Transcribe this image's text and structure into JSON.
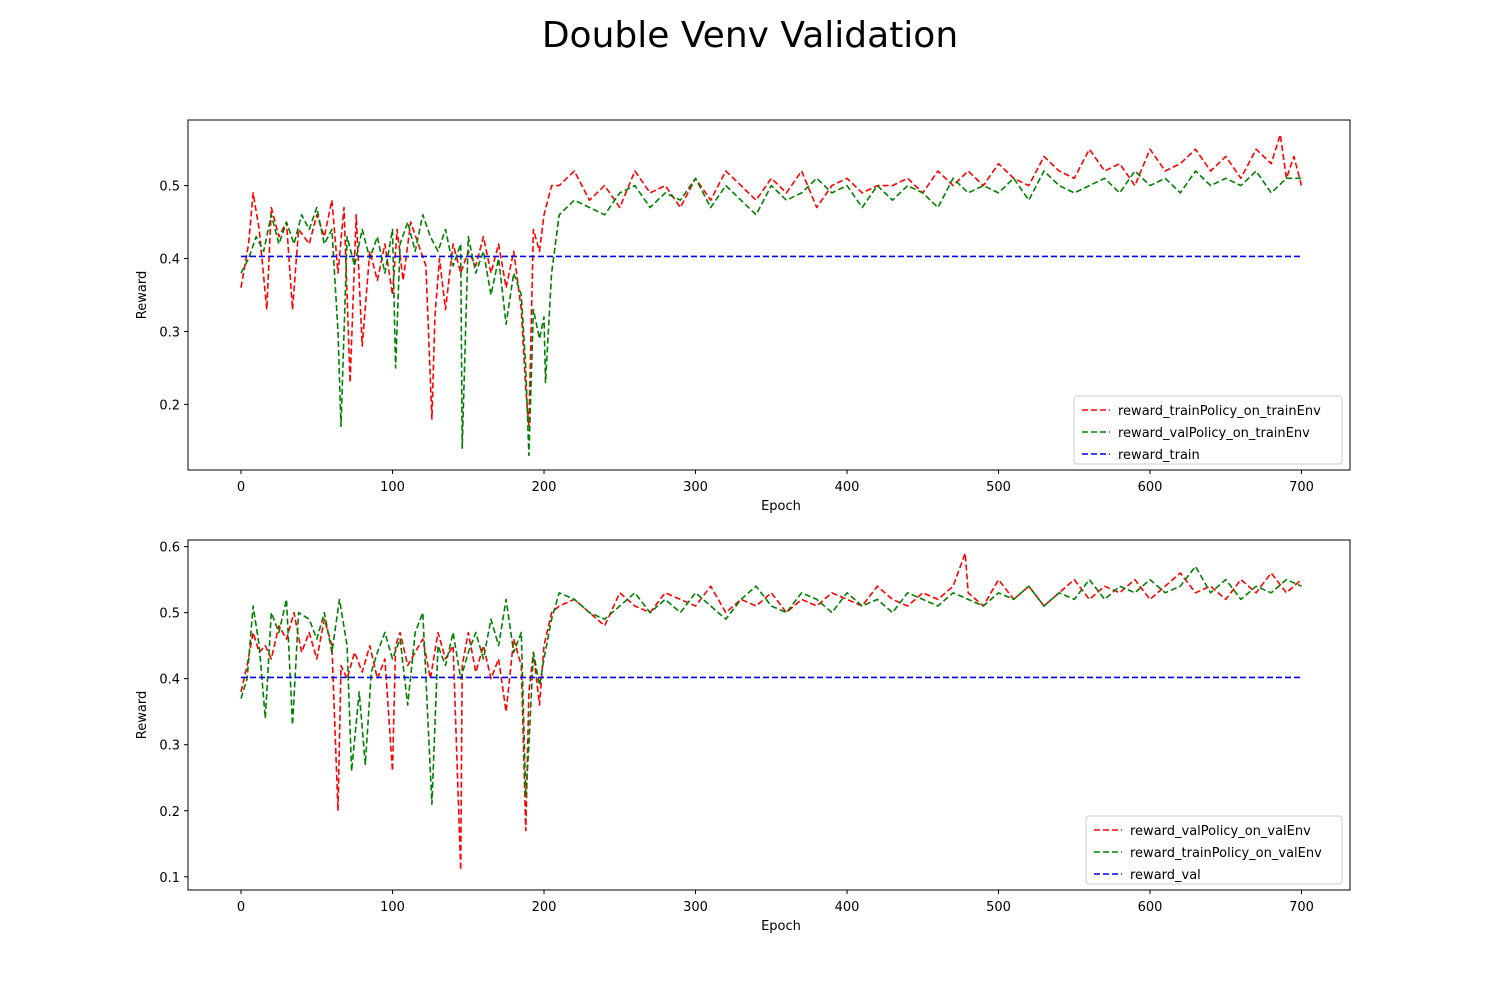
{
  "figure": {
    "suptitle": "Double Venv Validation"
  },
  "chart_data": [
    {
      "type": "line",
      "xlabel": "Epoch",
      "ylabel": "Reward",
      "xlim": [
        -35,
        732
      ],
      "ylim": [
        0.11,
        0.59
      ],
      "xticks": [
        0,
        100,
        200,
        300,
        400,
        500,
        600,
        700
      ],
      "yticks": [
        0.2,
        0.3,
        0.4,
        0.5
      ],
      "legend_position": "lower-right",
      "series": [
        {
          "name": "reward_trainPolicy_on_trainEnv",
          "color": "#ff0000",
          "style": "dashed",
          "x": [
            0,
            5,
            8,
            12,
            17,
            20,
            25,
            30,
            34,
            38,
            45,
            50,
            55,
            60,
            64,
            68,
            72,
            76,
            80,
            85,
            90,
            95,
            100,
            103,
            107,
            112,
            117,
            122,
            126,
            128,
            131,
            135,
            140,
            145,
            150,
            155,
            160,
            165,
            170,
            175,
            180,
            185,
            188,
            190,
            193,
            197,
            200,
            205,
            210,
            220,
            230,
            240,
            250,
            260,
            270,
            280,
            290,
            300,
            310,
            320,
            330,
            340,
            350,
            360,
            370,
            380,
            390,
            400,
            410,
            420,
            430,
            440,
            450,
            460,
            470,
            480,
            490,
            500,
            510,
            520,
            530,
            540,
            550,
            560,
            570,
            580,
            590,
            600,
            610,
            620,
            630,
            640,
            650,
            660,
            670,
            680,
            686,
            690,
            695,
            700
          ],
          "y": [
            0.36,
            0.42,
            0.49,
            0.44,
            0.33,
            0.47,
            0.43,
            0.45,
            0.33,
            0.44,
            0.42,
            0.46,
            0.43,
            0.48,
            0.38,
            0.47,
            0.23,
            0.46,
            0.28,
            0.41,
            0.37,
            0.42,
            0.35,
            0.44,
            0.37,
            0.45,
            0.42,
            0.39,
            0.18,
            0.32,
            0.4,
            0.33,
            0.42,
            0.38,
            0.41,
            0.39,
            0.43,
            0.38,
            0.42,
            0.36,
            0.41,
            0.33,
            0.22,
            0.17,
            0.44,
            0.41,
            0.46,
            0.5,
            0.5,
            0.52,
            0.48,
            0.5,
            0.47,
            0.52,
            0.49,
            0.5,
            0.47,
            0.51,
            0.48,
            0.52,
            0.5,
            0.48,
            0.51,
            0.49,
            0.52,
            0.47,
            0.5,
            0.51,
            0.49,
            0.5,
            0.5,
            0.51,
            0.49,
            0.52,
            0.5,
            0.52,
            0.5,
            0.53,
            0.51,
            0.5,
            0.54,
            0.52,
            0.51,
            0.55,
            0.52,
            0.53,
            0.5,
            0.55,
            0.52,
            0.53,
            0.55,
            0.52,
            0.54,
            0.51,
            0.55,
            0.53,
            0.57,
            0.51,
            0.54,
            0.5
          ]
        },
        {
          "name": "reward_valPolicy_on_trainEnv",
          "color": "#008000",
          "style": "dashed",
          "x": [
            0,
            5,
            10,
            15,
            20,
            25,
            30,
            35,
            40,
            45,
            50,
            55,
            60,
            64,
            66,
            70,
            75,
            80,
            85,
            90,
            95,
            100,
            102,
            105,
            110,
            115,
            120,
            125,
            130,
            135,
            140,
            145,
            146,
            150,
            155,
            160,
            165,
            170,
            175,
            180,
            185,
            188,
            190,
            193,
            197,
            200,
            201,
            205,
            210,
            220,
            230,
            240,
            250,
            260,
            270,
            280,
            290,
            300,
            310,
            320,
            330,
            340,
            350,
            360,
            370,
            380,
            390,
            400,
            410,
            420,
            430,
            440,
            450,
            460,
            470,
            480,
            490,
            500,
            510,
            520,
            530,
            540,
            550,
            560,
            570,
            580,
            590,
            600,
            610,
            620,
            630,
            640,
            650,
            660,
            670,
            680,
            690,
            700
          ],
          "y": [
            0.38,
            0.4,
            0.43,
            0.41,
            0.46,
            0.42,
            0.45,
            0.42,
            0.46,
            0.44,
            0.47,
            0.42,
            0.44,
            0.3,
            0.17,
            0.43,
            0.39,
            0.44,
            0.4,
            0.43,
            0.38,
            0.44,
            0.25,
            0.42,
            0.45,
            0.41,
            0.46,
            0.43,
            0.41,
            0.44,
            0.39,
            0.42,
            0.14,
            0.43,
            0.38,
            0.41,
            0.35,
            0.4,
            0.31,
            0.38,
            0.35,
            0.25,
            0.13,
            0.33,
            0.29,
            0.32,
            0.23,
            0.38,
            0.46,
            0.48,
            0.47,
            0.46,
            0.49,
            0.5,
            0.47,
            0.49,
            0.48,
            0.51,
            0.47,
            0.5,
            0.48,
            0.46,
            0.5,
            0.48,
            0.49,
            0.51,
            0.49,
            0.5,
            0.47,
            0.5,
            0.48,
            0.5,
            0.49,
            0.47,
            0.51,
            0.49,
            0.5,
            0.49,
            0.51,
            0.48,
            0.52,
            0.5,
            0.49,
            0.5,
            0.51,
            0.49,
            0.52,
            0.5,
            0.51,
            0.49,
            0.52,
            0.5,
            0.51,
            0.5,
            0.52,
            0.49,
            0.51,
            0.51
          ]
        },
        {
          "name": "reward_train",
          "color": "#0000ff",
          "style": "dashed",
          "x": [
            0,
            700
          ],
          "y": [
            0.403,
            0.403
          ]
        }
      ]
    },
    {
      "type": "line",
      "xlabel": "Epoch",
      "ylabel": "Reward",
      "xlim": [
        -35,
        732
      ],
      "ylim": [
        0.08,
        0.61
      ],
      "xticks": [
        0,
        100,
        200,
        300,
        400,
        500,
        600,
        700
      ],
      "yticks": [
        0.1,
        0.2,
        0.3,
        0.4,
        0.5,
        0.6
      ],
      "legend_position": "lower-right",
      "series": [
        {
          "name": "reward_valPolicy_on_valEnv",
          "color": "#ff0000",
          "style": "dashed",
          "x": [
            0,
            4,
            8,
            12,
            16,
            20,
            25,
            30,
            35,
            40,
            45,
            50,
            55,
            60,
            64,
            66,
            70,
            75,
            80,
            85,
            90,
            95,
            100,
            102,
            105,
            110,
            115,
            120,
            125,
            130,
            135,
            140,
            145,
            146,
            150,
            155,
            160,
            165,
            170,
            175,
            180,
            185,
            188,
            190,
            193,
            197,
            200,
            205,
            210,
            220,
            230,
            240,
            250,
            260,
            270,
            280,
            290,
            300,
            310,
            320,
            330,
            340,
            350,
            360,
            370,
            380,
            390,
            400,
            410,
            420,
            430,
            440,
            450,
            460,
            470,
            478,
            480,
            490,
            500,
            510,
            520,
            530,
            540,
            550,
            560,
            570,
            580,
            590,
            600,
            610,
            620,
            630,
            640,
            650,
            660,
            670,
            680,
            690,
            700
          ],
          "y": [
            0.38,
            0.42,
            0.47,
            0.44,
            0.45,
            0.43,
            0.48,
            0.46,
            0.5,
            0.44,
            0.47,
            0.43,
            0.49,
            0.45,
            0.2,
            0.42,
            0.4,
            0.44,
            0.41,
            0.45,
            0.4,
            0.43,
            0.26,
            0.45,
            0.47,
            0.42,
            0.44,
            0.46,
            0.4,
            0.47,
            0.43,
            0.45,
            0.11,
            0.42,
            0.47,
            0.41,
            0.45,
            0.4,
            0.43,
            0.35,
            0.46,
            0.42,
            0.17,
            0.38,
            0.44,
            0.36,
            0.45,
            0.5,
            0.51,
            0.52,
            0.5,
            0.48,
            0.53,
            0.51,
            0.5,
            0.53,
            0.52,
            0.51,
            0.54,
            0.5,
            0.52,
            0.51,
            0.53,
            0.5,
            0.52,
            0.51,
            0.53,
            0.52,
            0.51,
            0.54,
            0.52,
            0.51,
            0.53,
            0.52,
            0.54,
            0.59,
            0.53,
            0.51,
            0.55,
            0.52,
            0.54,
            0.51,
            0.53,
            0.55,
            0.52,
            0.54,
            0.53,
            0.55,
            0.52,
            0.54,
            0.56,
            0.53,
            0.54,
            0.52,
            0.55,
            0.53,
            0.56,
            0.53,
            0.55
          ]
        },
        {
          "name": "reward_trainPolicy_on_valEnv",
          "color": "#008000",
          "style": "dashed",
          "x": [
            0,
            4,
            8,
            12,
            16,
            20,
            25,
            30,
            34,
            38,
            45,
            50,
            55,
            60,
            65,
            70,
            73,
            78,
            82,
            86,
            90,
            95,
            100,
            105,
            110,
            115,
            120,
            126,
            130,
            135,
            140,
            145,
            150,
            155,
            160,
            165,
            170,
            175,
            180,
            185,
            188,
            190,
            193,
            197,
            200,
            205,
            210,
            220,
            230,
            240,
            250,
            260,
            270,
            280,
            290,
            300,
            310,
            320,
            330,
            340,
            350,
            360,
            370,
            380,
            390,
            400,
            410,
            420,
            430,
            440,
            450,
            460,
            470,
            480,
            490,
            500,
            510,
            520,
            530,
            540,
            550,
            560,
            570,
            580,
            590,
            600,
            610,
            620,
            630,
            640,
            650,
            660,
            670,
            680,
            690,
            700
          ],
          "y": [
            0.37,
            0.4,
            0.51,
            0.45,
            0.34,
            0.5,
            0.47,
            0.52,
            0.33,
            0.5,
            0.49,
            0.46,
            0.5,
            0.44,
            0.52,
            0.45,
            0.26,
            0.38,
            0.27,
            0.41,
            0.44,
            0.47,
            0.43,
            0.46,
            0.36,
            0.47,
            0.5,
            0.21,
            0.45,
            0.42,
            0.47,
            0.4,
            0.44,
            0.47,
            0.43,
            0.49,
            0.45,
            0.52,
            0.44,
            0.47,
            0.22,
            0.3,
            0.44,
            0.39,
            0.43,
            0.49,
            0.53,
            0.52,
            0.5,
            0.49,
            0.51,
            0.53,
            0.5,
            0.52,
            0.5,
            0.53,
            0.51,
            0.49,
            0.52,
            0.54,
            0.51,
            0.5,
            0.53,
            0.52,
            0.5,
            0.53,
            0.51,
            0.52,
            0.5,
            0.53,
            0.52,
            0.51,
            0.53,
            0.52,
            0.51,
            0.53,
            0.52,
            0.54,
            0.51,
            0.53,
            0.52,
            0.55,
            0.52,
            0.54,
            0.53,
            0.55,
            0.53,
            0.54,
            0.57,
            0.53,
            0.55,
            0.52,
            0.54,
            0.53,
            0.55,
            0.54
          ]
        },
        {
          "name": "reward_val",
          "color": "#0000ff",
          "style": "dashed",
          "x": [
            0,
            700
          ],
          "y": [
            0.402,
            0.402
          ]
        }
      ]
    }
  ]
}
